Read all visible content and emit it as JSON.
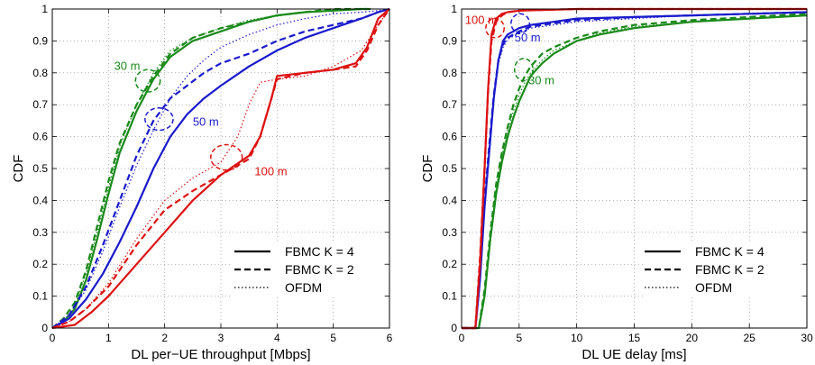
{
  "chart_data": [
    {
      "type": "line",
      "xlabel": "DL per−UE throughput [Mbps]",
      "ylabel": "CDF",
      "xlim": [
        0,
        6
      ],
      "ylim": [
        0,
        1
      ],
      "x_ticks": [
        "0",
        "1",
        "2",
        "3",
        "4",
        "5",
        "6"
      ],
      "y_ticks": [
        "0",
        "0.1",
        "0.2",
        "0.3",
        "0.4",
        "0.5",
        "0.6",
        "0.7",
        "0.8",
        "0.9",
        "1"
      ],
      "grid": true,
      "legend": {
        "placement": "bottom-right",
        "entries": [
          {
            "label": "FBMC K = 4",
            "style": "solid"
          },
          {
            "label": "FBMC K = 2",
            "style": "dashed"
          },
          {
            "label": "OFDM",
            "style": "dotted"
          }
        ]
      },
      "annotations": [
        {
          "text": "30 m",
          "color": "#1a8a1a",
          "x": 1.1,
          "y": 0.82
        },
        {
          "text": "50 m",
          "color": "#1a1acc",
          "x": 2.5,
          "y": 0.645
        },
        {
          "text": "100 m",
          "color": "#dd1111",
          "x": 3.6,
          "y": 0.49
        }
      ],
      "ellipses": [
        {
          "color": "#1a8a1a",
          "cx": 1.7,
          "cy": 0.775,
          "rx": 0.22,
          "ry": 0.035
        },
        {
          "color": "#1a1acc",
          "cx": 1.9,
          "cy": 0.655,
          "rx": 0.25,
          "ry": 0.035
        },
        {
          "color": "#dd1111",
          "cx": 3.1,
          "cy": 0.535,
          "rx": 0.28,
          "ry": 0.04
        }
      ],
      "series": [
        {
          "color": "#1a8a1a",
          "style": "solid",
          "x": [
            0,
            0.2,
            0.4,
            0.6,
            0.8,
            1.0,
            1.2,
            1.5,
            1.8,
            2.1,
            2.5,
            3.0,
            3.5,
            4.0,
            4.5,
            5.0,
            5.5,
            5.6
          ],
          "y": [
            0,
            0.02,
            0.06,
            0.15,
            0.28,
            0.42,
            0.55,
            0.68,
            0.78,
            0.85,
            0.9,
            0.93,
            0.96,
            0.98,
            0.99,
            0.995,
            1,
            1
          ]
        },
        {
          "color": "#1a8a1a",
          "style": "dashed",
          "x": [
            0,
            0.2,
            0.4,
            0.6,
            0.8,
            1.0,
            1.2,
            1.5,
            1.8,
            2.1,
            2.5,
            3.0,
            3.5,
            4.0,
            4.5,
            5.0,
            5.5,
            5.7
          ],
          "y": [
            0,
            0.03,
            0.08,
            0.18,
            0.32,
            0.46,
            0.58,
            0.7,
            0.79,
            0.86,
            0.91,
            0.94,
            0.96,
            0.98,
            0.99,
            1,
            1,
            1
          ]
        },
        {
          "color": "#1a8a1a",
          "style": "dotted",
          "x": [
            0,
            0.2,
            0.4,
            0.6,
            0.8,
            1.0,
            1.2,
            1.5,
            1.8,
            2.1,
            2.5,
            3.0,
            3.5,
            4.0,
            4.5,
            5.0,
            5.5
          ],
          "y": [
            0,
            0.02,
            0.07,
            0.17,
            0.3,
            0.44,
            0.57,
            0.7,
            0.8,
            0.87,
            0.91,
            0.94,
            0.965,
            0.98,
            0.99,
            0.995,
            1
          ]
        },
        {
          "color": "#1a1acc",
          "style": "solid",
          "x": [
            0,
            0.3,
            0.6,
            0.9,
            1.2,
            1.5,
            1.8,
            2.1,
            2.4,
            2.7,
            3.0,
            3.5,
            4.0,
            4.5,
            5.0,
            5.5,
            5.8,
            6.0
          ],
          "y": [
            0,
            0.03,
            0.09,
            0.17,
            0.27,
            0.38,
            0.5,
            0.6,
            0.67,
            0.72,
            0.76,
            0.82,
            0.87,
            0.91,
            0.94,
            0.97,
            0.99,
            1
          ]
        },
        {
          "color": "#1a1acc",
          "style": "dashed",
          "x": [
            0,
            0.3,
            0.6,
            0.9,
            1.2,
            1.5,
            1.8,
            2.1,
            2.4,
            2.7,
            3.0,
            3.5,
            4.0,
            4.5,
            5.0,
            5.5,
            5.8,
            6.0
          ],
          "y": [
            0,
            0.04,
            0.13,
            0.26,
            0.4,
            0.54,
            0.65,
            0.72,
            0.76,
            0.8,
            0.83,
            0.86,
            0.9,
            0.93,
            0.95,
            0.97,
            0.99,
            1
          ]
        },
        {
          "color": "#1a1acc",
          "style": "dotted",
          "x": [
            0,
            0.3,
            0.6,
            0.9,
            1.2,
            1.5,
            1.8,
            2.1,
            2.4,
            2.7,
            3.0,
            3.5,
            4.0,
            4.5,
            5.0,
            5.5,
            5.8,
            6.0
          ],
          "y": [
            0,
            0.04,
            0.12,
            0.24,
            0.38,
            0.51,
            0.62,
            0.72,
            0.79,
            0.84,
            0.88,
            0.92,
            0.95,
            0.97,
            0.985,
            0.99,
            0.995,
            1
          ]
        },
        {
          "color": "#dd1111",
          "style": "solid",
          "x": [
            0,
            0.4,
            0.7,
            1.0,
            1.5,
            2.0,
            2.5,
            3.0,
            3.5,
            3.7,
            3.9,
            4.0,
            4.5,
            5.0,
            5.4,
            5.6,
            5.8,
            6.0
          ],
          "y": [
            0,
            0.01,
            0.05,
            0.1,
            0.2,
            0.3,
            0.4,
            0.48,
            0.54,
            0.6,
            0.72,
            0.79,
            0.8,
            0.81,
            0.83,
            0.88,
            0.97,
            1
          ]
        },
        {
          "color": "#dd1111",
          "style": "dashed",
          "x": [
            0,
            0.3,
            0.6,
            1.0,
            1.5,
            2.0,
            2.5,
            3.0,
            3.5,
            3.7,
            3.9,
            4.0,
            4.5,
            5.0,
            5.4,
            5.6,
            5.8,
            6.0
          ],
          "y": [
            0,
            0.02,
            0.06,
            0.13,
            0.26,
            0.37,
            0.43,
            0.48,
            0.53,
            0.6,
            0.72,
            0.78,
            0.8,
            0.81,
            0.82,
            0.87,
            0.95,
            1
          ]
        },
        {
          "color": "#dd1111",
          "style": "dotted",
          "x": [
            0,
            0.3,
            0.6,
            1.0,
            1.5,
            2.0,
            2.5,
            3.0,
            3.3,
            3.5,
            3.7,
            4.0,
            4.5,
            5.0,
            5.5,
            5.8,
            6.0
          ],
          "y": [
            0,
            0.02,
            0.06,
            0.14,
            0.28,
            0.4,
            0.47,
            0.52,
            0.6,
            0.7,
            0.77,
            0.78,
            0.79,
            0.82,
            0.87,
            0.95,
            1
          ]
        }
      ]
    },
    {
      "type": "line",
      "xlabel": "DL UE delay [ms]",
      "ylabel": "CDF",
      "xlim": [
        0,
        30
      ],
      "ylim": [
        0,
        1
      ],
      "x_ticks": [
        "0",
        "5",
        "10",
        "15",
        "20",
        "25",
        "30"
      ],
      "y_ticks": [
        "0",
        "0.1",
        "0.2",
        "0.3",
        "0.4",
        "0.5",
        "0.6",
        "0.7",
        "0.8",
        "0.9",
        "1"
      ],
      "grid": true,
      "legend": {
        "placement": "bottom-right",
        "entries": [
          {
            "label": "FBMC K = 4",
            "style": "solid"
          },
          {
            "label": "FBMC K = 2",
            "style": "dashed"
          },
          {
            "label": "OFDM",
            "style": "dotted"
          }
        ]
      },
      "annotations": [
        {
          "text": "100 m",
          "color": "#dd1111",
          "x": 0.3,
          "y": 0.965
        },
        {
          "text": "50 m",
          "color": "#1a1acc",
          "x": 4.6,
          "y": 0.91
        },
        {
          "text": "30 m",
          "color": "#1a8a1a",
          "x": 5.8,
          "y": 0.775
        }
      ],
      "ellipses": [
        {
          "color": "#dd1111",
          "cx": 2.9,
          "cy": 0.94,
          "rx": 0.8,
          "ry": 0.03
        },
        {
          "color": "#1a1acc",
          "cx": 5.1,
          "cy": 0.955,
          "rx": 0.8,
          "ry": 0.03
        },
        {
          "color": "#1a8a1a",
          "cx": 5.4,
          "cy": 0.81,
          "rx": 0.8,
          "ry": 0.035
        }
      ],
      "series": [
        {
          "color": "#1a8a1a",
          "style": "solid",
          "x": [
            0,
            1.5,
            2.0,
            2.5,
            3.0,
            3.5,
            4.0,
            4.5,
            5.0,
            5.5,
            6.0,
            7.0,
            8.0,
            10.0,
            12.0,
            15.0,
            20.0,
            25.0,
            30.0
          ],
          "y": [
            0,
            0.0,
            0.1,
            0.28,
            0.42,
            0.52,
            0.6,
            0.66,
            0.71,
            0.75,
            0.79,
            0.83,
            0.86,
            0.9,
            0.92,
            0.94,
            0.96,
            0.97,
            0.98
          ]
        },
        {
          "color": "#1a8a1a",
          "style": "dashed",
          "x": [
            0,
            1.5,
            2.0,
            2.5,
            3.0,
            3.5,
            4.0,
            4.5,
            5.0,
            5.5,
            6.0,
            7.0,
            8.0,
            10.0,
            12.0,
            15.0,
            20.0,
            25.0,
            30.0
          ],
          "y": [
            0,
            0.0,
            0.12,
            0.3,
            0.45,
            0.55,
            0.63,
            0.7,
            0.75,
            0.79,
            0.82,
            0.86,
            0.88,
            0.91,
            0.93,
            0.95,
            0.965,
            0.975,
            0.985
          ]
        },
        {
          "color": "#1a8a1a",
          "style": "dotted",
          "x": [
            0,
            1.5,
            2.0,
            2.5,
            3.0,
            3.5,
            4.0,
            4.5,
            5.0,
            5.5,
            6.0,
            7.0,
            8.0,
            10.0,
            12.0,
            15.0,
            20.0,
            25.0,
            30.0
          ],
          "y": [
            0,
            0.0,
            0.11,
            0.29,
            0.44,
            0.54,
            0.62,
            0.68,
            0.73,
            0.77,
            0.8,
            0.84,
            0.87,
            0.9,
            0.925,
            0.945,
            0.96,
            0.97,
            0.98
          ]
        },
        {
          "color": "#1a1acc",
          "style": "solid",
          "x": [
            0,
            1.2,
            1.6,
            2.0,
            2.4,
            2.8,
            3.2,
            3.6,
            4.0,
            5.0,
            6.0,
            8.0,
            10.0,
            15.0,
            20.0,
            25.0,
            30.0
          ],
          "y": [
            0,
            0.0,
            0.15,
            0.38,
            0.55,
            0.72,
            0.84,
            0.9,
            0.92,
            0.94,
            0.95,
            0.96,
            0.97,
            0.975,
            0.98,
            0.985,
            0.99
          ]
        },
        {
          "color": "#1a1acc",
          "style": "dashed",
          "x": [
            0,
            1.2,
            1.6,
            2.0,
            2.4,
            2.8,
            3.2,
            3.6,
            4.0,
            5.0,
            6.0,
            8.0,
            10.0,
            15.0,
            20.0,
            25.0,
            30.0
          ],
          "y": [
            0,
            0.0,
            0.16,
            0.4,
            0.57,
            0.73,
            0.84,
            0.89,
            0.91,
            0.93,
            0.945,
            0.955,
            0.965,
            0.975,
            0.98,
            0.985,
            0.99
          ]
        },
        {
          "color": "#1a1acc",
          "style": "dotted",
          "x": [
            0,
            1.2,
            1.6,
            2.0,
            2.4,
            2.8,
            3.2,
            3.6,
            4.0,
            5.0,
            6.0,
            8.0,
            10.0,
            15.0,
            20.0,
            25.0,
            30.0
          ],
          "y": [
            0,
            0.0,
            0.15,
            0.39,
            0.56,
            0.72,
            0.83,
            0.88,
            0.905,
            0.925,
            0.94,
            0.95,
            0.96,
            0.97,
            0.98,
            0.985,
            0.99
          ]
        },
        {
          "color": "#dd1111",
          "style": "solid",
          "x": [
            0,
            1.2,
            1.6,
            2.0,
            2.3,
            2.6,
            3.0,
            3.5,
            4.0,
            5.0,
            10.0,
            20.0,
            30.0
          ],
          "y": [
            0,
            0.0,
            0.2,
            0.5,
            0.75,
            0.92,
            0.97,
            0.985,
            0.99,
            0.995,
            1,
            1,
            1
          ]
        },
        {
          "color": "#dd1111",
          "style": "dashed",
          "x": [
            0,
            1.2,
            1.6,
            2.0,
            2.3,
            2.6,
            3.0,
            3.5,
            4.0,
            5.0,
            10.0,
            20.0,
            30.0
          ],
          "y": [
            0,
            0.0,
            0.22,
            0.5,
            0.74,
            0.9,
            0.96,
            0.98,
            0.99,
            0.995,
            1,
            1,
            1
          ]
        },
        {
          "color": "#dd1111",
          "style": "dotted",
          "x": [
            0,
            1.2,
            1.6,
            2.0,
            2.3,
            2.6,
            3.0,
            3.5,
            4.0,
            5.0,
            10.0,
            20.0,
            30.0
          ],
          "y": [
            0,
            0.0,
            0.21,
            0.5,
            0.74,
            0.91,
            0.965,
            0.98,
            0.99,
            0.995,
            1,
            1,
            1
          ]
        }
      ]
    }
  ]
}
